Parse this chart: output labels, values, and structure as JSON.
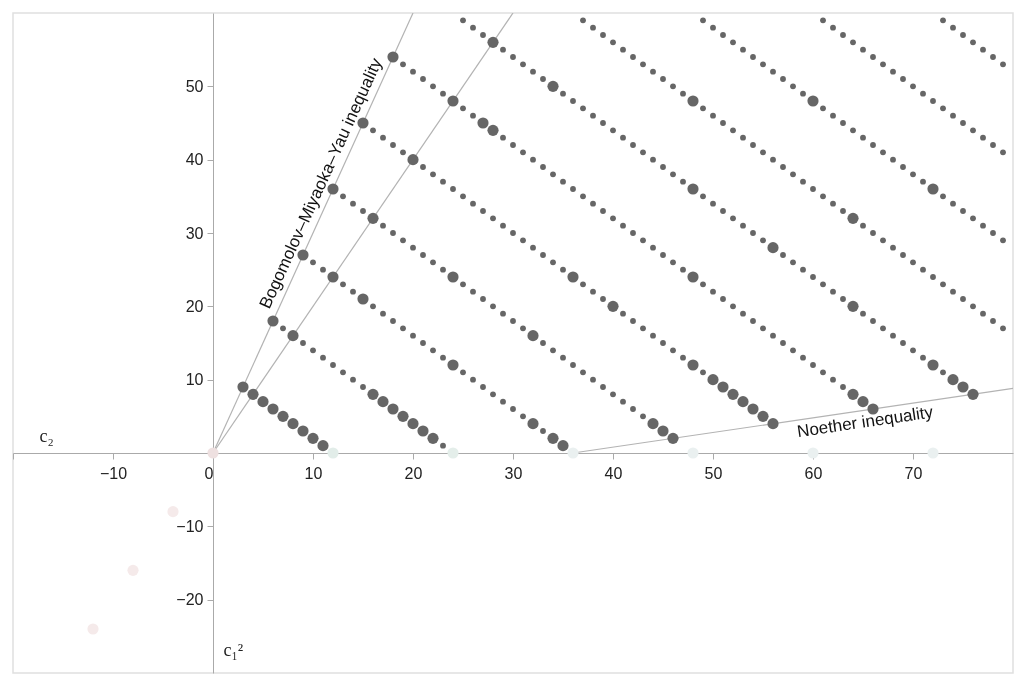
{
  "chart_data": {
    "type": "scatter",
    "xlabel": "c₂",
    "ylabel": "c₁²",
    "xlim": [
      -20,
      80
    ],
    "ylim": [
      -30,
      60
    ],
    "xticks": [
      {
        "value": -20,
        "label": null
      },
      -10,
      0,
      10,
      20,
      30,
      40,
      50,
      60,
      70
    ],
    "yticks": [
      -20,
      -10,
      10,
      20,
      30,
      40,
      50
    ],
    "annotations": [
      "Bogomolov–Miyaoka–Yau inequality",
      "Noether inequality"
    ],
    "series": [
      {
        "type": "line",
        "color": "#b3b3b3",
        "x": [
          0,
          20
        ],
        "values": [
          0,
          60
        ]
      },
      {
        "type": "line",
        "color": "#b3b3b3",
        "x": [
          36,
          80
        ],
        "values": [
          0,
          8.8
        ]
      },
      {
        "type": "line",
        "color": "#b3b3b3",
        "x": [
          0,
          30
        ],
        "values": [
          0,
          60
        ]
      },
      {
        "type": "bubble",
        "x": [
          -12,
          -8,
          -4,
          0,
          12,
          24,
          36,
          48,
          60,
          72
        ],
        "values": [
          -24,
          -16,
          -8,
          0,
          0,
          0,
          0,
          0,
          0,
          0
        ],
        "sizes": [
          1,
          1,
          1,
          1,
          1,
          1,
          1,
          1,
          1,
          1
        ],
        "colors": [
          "#f5eaea",
          "#f5eaea",
          "#f5eaea",
          "#eee0e0",
          "#e2ede9",
          "#e4eeea",
          "#eaf0f0",
          "#eaf0f0",
          "#eaf0f0",
          "#eaf0f0"
        ]
      },
      {
        "color": "#666666",
        "x": [
          7,
          9,
          10,
          11,
          12,
          13,
          14,
          15,
          23
        ],
        "values": [
          17,
          15,
          14,
          13,
          12,
          11,
          10,
          9,
          1
        ]
      },
      {
        "type": "scatter",
        "color": "#666666",
        "x": [
          10,
          11,
          13,
          14,
          16,
          17,
          18,
          19,
          20,
          21,
          22,
          23,
          25,
          26,
          27,
          28,
          29,
          30,
          31,
          33
        ],
        "values": [
          26,
          25,
          23,
          22,
          20,
          19,
          18,
          17,
          16,
          15,
          14,
          13,
          11,
          10,
          9,
          8,
          7,
          6,
          5,
          3
        ]
      },
      {
        "type": "scatter",
        "color": "#666666",
        "x": [
          13,
          14,
          15,
          17,
          18,
          19,
          20,
          21,
          22,
          23,
          25,
          26,
          27,
          28,
          29,
          30,
          31,
          33,
          34,
          35,
          36,
          37,
          38,
          39,
          40,
          41,
          42,
          43
        ],
        "values": [
          35,
          34,
          33,
          31,
          30,
          29,
          28,
          27,
          26,
          25,
          23,
          22,
          21,
          20,
          19,
          18,
          17,
          15,
          14,
          13,
          12,
          11,
          10,
          9,
          8,
          7,
          6,
          5
        ]
      },
      {
        "type": "scatter",
        "color": "#666666",
        "x": [
          16,
          17,
          18,
          19,
          21,
          22,
          23,
          24,
          25,
          26,
          27,
          28,
          29,
          30,
          31,
          32,
          33,
          34,
          35,
          37,
          38,
          39,
          41,
          42,
          43,
          44,
          45,
          46,
          47,
          49
        ],
        "values": [
          44,
          43,
          42,
          41,
          39,
          38,
          37,
          36,
          35,
          34,
          33,
          32,
          31,
          30,
          29,
          28,
          27,
          26,
          25,
          23,
          22,
          21,
          19,
          18,
          17,
          16,
          15,
          14,
          13,
          11
        ]
      },
      {
        "type": "scatter",
        "color": "#666666",
        "x": [
          19,
          20,
          21,
          22,
          23,
          25,
          26,
          29,
          30,
          31,
          32,
          33,
          34,
          35,
          36,
          37,
          38,
          39,
          40,
          41,
          42,
          43,
          44,
          45,
          46,
          47,
          49,
          50,
          51,
          52,
          53,
          54,
          55,
          56,
          57,
          58,
          59,
          60,
          61,
          62,
          63
        ],
        "values": [
          53,
          52,
          51,
          50,
          49,
          47,
          46,
          43,
          42,
          41,
          40,
          39,
          38,
          37,
          36,
          35,
          34,
          33,
          32,
          31,
          30,
          29,
          28,
          27,
          26,
          25,
          23,
          22,
          21,
          20,
          19,
          18,
          17,
          16,
          15,
          14,
          13,
          12,
          11,
          10,
          9
        ]
      },
      {
        "type": "scatter",
        "color": "#666666",
        "x": [
          25,
          26,
          27,
          29,
          30,
          31,
          32,
          33,
          35,
          36,
          37,
          38,
          39,
          40,
          41,
          42,
          43,
          44,
          45,
          46,
          47,
          49,
          50,
          51,
          52,
          53,
          54,
          55,
          57,
          58,
          59,
          60,
          61,
          62,
          63,
          65,
          66,
          67,
          68,
          69,
          70,
          71,
          73
        ],
        "values": [
          59,
          58,
          57,
          55,
          54,
          53,
          52,
          51,
          49,
          48,
          47,
          46,
          45,
          44,
          43,
          42,
          41,
          40,
          39,
          38,
          37,
          35,
          34,
          33,
          32,
          31,
          30,
          29,
          27,
          26,
          25,
          24,
          23,
          22,
          21,
          19,
          18,
          17,
          16,
          15,
          14,
          13,
          11
        ]
      },
      {
        "type": "scatter",
        "color": "#666666",
        "x": [
          37,
          38,
          39,
          40,
          41,
          42,
          43,
          44,
          45,
          46,
          47,
          49,
          50,
          51,
          52,
          53,
          54,
          55,
          56,
          57,
          58,
          59,
          60,
          61,
          62,
          63,
          65,
          66,
          67,
          68,
          69,
          70,
          71,
          72,
          73,
          74,
          75,
          76,
          77,
          78,
          79
        ],
        "values": [
          59,
          58,
          57,
          56,
          55,
          54,
          53,
          52,
          51,
          50,
          49,
          47,
          46,
          45,
          44,
          43,
          42,
          41,
          40,
          39,
          38,
          37,
          36,
          35,
          34,
          33,
          31,
          30,
          29,
          28,
          27,
          26,
          25,
          24,
          23,
          22,
          21,
          20,
          19,
          18,
          17
        ]
      },
      {
        "type": "scatter",
        "color": "#666666",
        "x": [
          49,
          50,
          51,
          52,
          53,
          54,
          55,
          56,
          57,
          58,
          59,
          61,
          62,
          63,
          64,
          65,
          66,
          67,
          68,
          69,
          70,
          71,
          73,
          74,
          75,
          76,
          77,
          78,
          79
        ],
        "values": [
          59,
          58,
          57,
          56,
          55,
          54,
          53,
          52,
          51,
          50,
          49,
          47,
          46,
          45,
          44,
          43,
          42,
          41,
          40,
          39,
          38,
          37,
          35,
          34,
          33,
          32,
          31,
          30,
          29
        ]
      },
      {
        "type": "scatter",
        "color": "#666666",
        "x": [
          61,
          62,
          63,
          64,
          65,
          66,
          67,
          68,
          69,
          70,
          71,
          72,
          73,
          74,
          75,
          76,
          77,
          78,
          79
        ],
        "values": [
          59,
          58,
          57,
          56,
          55,
          54,
          53,
          52,
          51,
          50,
          49,
          48,
          47,
          46,
          45,
          44,
          43,
          42,
          41
        ]
      },
      {
        "type": "scatter",
        "color": "#666666",
        "x": [
          73,
          74,
          75,
          76,
          77,
          78,
          79
        ],
        "values": [
          59,
          58,
          57,
          56,
          55,
          54,
          53
        ]
      },
      {
        "type": "bubble",
        "color": "#666666",
        "x": [
          3,
          4,
          5,
          6,
          7,
          8,
          9,
          10,
          11,
          6,
          8,
          16,
          17,
          18,
          19,
          20,
          21,
          22,
          9,
          12,
          15,
          24,
          32,
          34,
          35,
          12,
          16,
          24,
          32,
          44,
          45,
          46,
          15,
          20,
          36,
          40,
          48,
          50,
          51,
          52,
          53,
          54,
          55,
          56,
          18,
          24,
          27,
          28,
          48,
          64,
          65,
          66,
          28,
          34,
          48,
          56,
          64,
          72,
          74,
          75,
          76,
          48,
          64,
          60,
          72
        ],
        "values": [
          9,
          8,
          7,
          6,
          5,
          4,
          3,
          2,
          1,
          18,
          16,
          8,
          7,
          6,
          5,
          4,
          3,
          2,
          27,
          24,
          21,
          12,
          4,
          2,
          1,
          36,
          32,
          24,
          16,
          4,
          3,
          2,
          45,
          40,
          24,
          20,
          12,
          10,
          9,
          8,
          7,
          6,
          5,
          4,
          54,
          48,
          45,
          44,
          24,
          8,
          7,
          6,
          56,
          50,
          36,
          28,
          20,
          12,
          10,
          9,
          8,
          48,
          32,
          48,
          36
        ],
        "sizes": [
          1,
          1,
          1,
          1,
          1,
          1,
          1,
          1,
          1,
          1,
          1,
          1,
          1,
          1,
          1,
          1,
          1,
          1,
          1,
          1,
          1,
          1,
          1,
          1,
          1,
          1,
          1,
          1,
          1,
          1,
          1,
          1,
          1,
          1,
          1,
          1,
          1,
          1,
          1,
          1,
          1,
          1,
          1,
          1,
          1,
          1,
          1,
          1,
          1,
          1,
          1,
          1,
          1,
          1,
          1,
          1,
          1,
          1,
          1,
          1,
          1,
          1,
          1,
          1,
          1
        ]
      }
    ]
  }
}
